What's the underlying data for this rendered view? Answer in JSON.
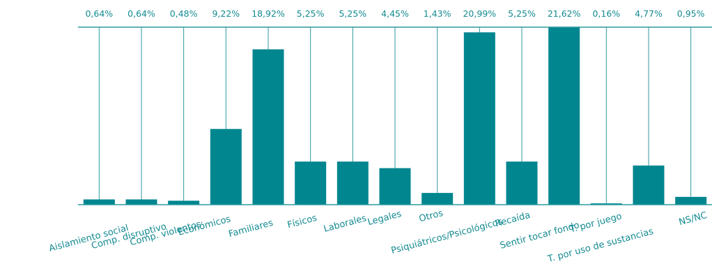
{
  "chart_data": {
    "type": "bar",
    "categories": [
      "Aislamiento social",
      "Comp. disruptivo",
      "Comp. violentos",
      "Económicos",
      "Familiares",
      "Físicos",
      "Laborales",
      "Legales",
      "Otros",
      "Psiquiátricos/Psicológicos",
      "Recaída",
      "Sentir tocar fondo",
      "T. por juego",
      "T. por uso de sustancias",
      "NS/NC"
    ],
    "values": [
      0.64,
      0.64,
      0.48,
      9.22,
      18.92,
      5.25,
      5.25,
      4.45,
      1.43,
      20.99,
      5.25,
      21.62,
      0.16,
      4.77,
      0.95
    ],
    "value_labels": [
      "0,64%",
      "0,64%",
      "0,48%",
      "9,22%",
      "18,92%",
      "5,25%",
      "5,25%",
      "4,45%",
      "1,43%",
      "20,99%",
      "5,25%",
      "21,62%",
      "0,16%",
      "4,77%",
      "0,95%"
    ],
    "ylim": [
      0,
      21.62
    ],
    "title": "",
    "xlabel": "",
    "ylabel": "",
    "grid": false,
    "legend": "none",
    "colors": {
      "bar": "#00868f",
      "line": "#2d9aa0",
      "text": "#138a91"
    }
  }
}
